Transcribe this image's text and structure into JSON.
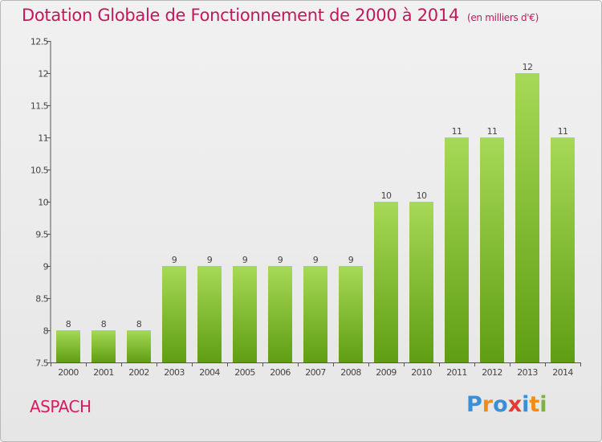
{
  "header": {
    "title": "Dotation Globale de Fonctionnement de 2000 à 2014",
    "unit": "(en milliers d'€)"
  },
  "footer": {
    "commune": "ASPACH",
    "logo": "Proxiti"
  },
  "colors": {
    "title": "#c2185b",
    "bar_top": "#a6d957",
    "bar_bottom": "#5f9e12",
    "axis": "#555555"
  },
  "chart_data": {
    "type": "bar",
    "title": "Dotation Globale de Fonctionnement de 2000 à 2014",
    "xlabel": "",
    "ylabel": "",
    "categories": [
      "2000",
      "2001",
      "2002",
      "2003",
      "2004",
      "2005",
      "2006",
      "2007",
      "2008",
      "2009",
      "2010",
      "2011",
      "2012",
      "2013",
      "2014"
    ],
    "values": [
      8,
      8,
      8,
      9,
      9,
      9,
      9,
      9,
      9,
      10,
      10,
      11,
      11,
      12,
      11
    ],
    "data_labels": [
      "8",
      "8",
      "8",
      "9",
      "9",
      "9",
      "9",
      "9",
      "9",
      "10",
      "10",
      "11",
      "11",
      "12",
      "11"
    ],
    "ylim": [
      7.5,
      12.5
    ],
    "yticks": [
      7.5,
      8,
      8.5,
      9,
      9.5,
      10,
      10.5,
      11,
      11.5,
      12,
      12.5
    ],
    "ytick_labels": [
      "7.5",
      "8",
      "8.5",
      "9",
      "9.5",
      "10",
      "10.5",
      "11",
      "11.5",
      "12",
      "12.5"
    ],
    "grid": false,
    "legend": "none"
  }
}
